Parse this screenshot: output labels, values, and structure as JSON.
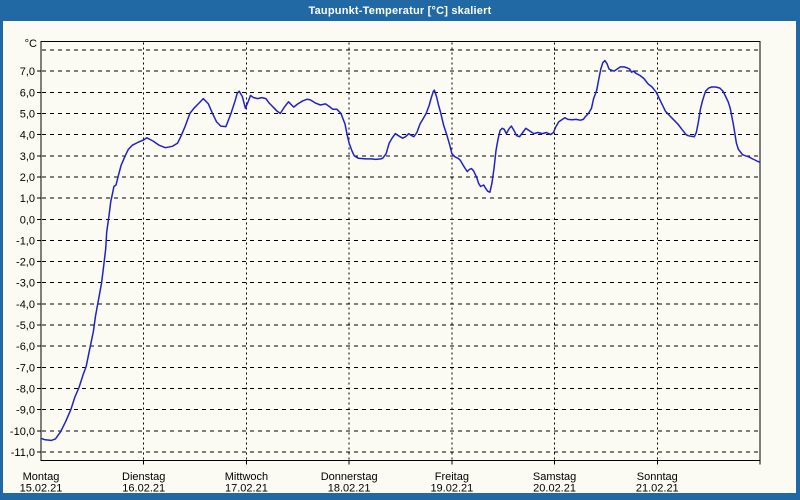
{
  "window": {
    "title": "Taupunkt-Temperatur [°C] skaliert",
    "frame_color": "#2069a4",
    "title_text_color": "#ffffff",
    "panel_color": "#fbfbf4"
  },
  "chart_data": {
    "type": "line",
    "title": "Taupunkt-Temperatur [°C] skaliert",
    "ylabel": "°C",
    "unit_label": "°C",
    "grid": "dashed",
    "legend": "none",
    "line_color": "#2121c8",
    "axis_color": "#000000",
    "ylim": [
      -11.4,
      8.4
    ],
    "xlim_days": [
      0,
      7
    ],
    "y_gridlines": [
      8,
      7,
      6,
      5,
      4,
      3,
      2,
      1,
      0,
      -1,
      -2,
      -3,
      -4,
      -5,
      -6,
      -7,
      -8,
      -9,
      -10,
      -11
    ],
    "y_tick_labels": [
      {
        "value": 7,
        "label": "7,0"
      },
      {
        "value": 6,
        "label": "6,0"
      },
      {
        "value": 5,
        "label": "5,0"
      },
      {
        "value": 4,
        "label": "4,0"
      },
      {
        "value": 3,
        "label": "3,0"
      },
      {
        "value": 2,
        "label": "2,0"
      },
      {
        "value": 1,
        "label": "1,0"
      },
      {
        "value": 0,
        "label": "0,0"
      },
      {
        "value": -1,
        "label": "-1,0"
      },
      {
        "value": -2,
        "label": "-2,0"
      },
      {
        "value": -3,
        "label": "-3,0"
      },
      {
        "value": -4,
        "label": "-4,0"
      },
      {
        "value": -5,
        "label": "-5,0"
      },
      {
        "value": -6,
        "label": "-6,0"
      },
      {
        "value": -7,
        "label": "-7,0"
      },
      {
        "value": -8,
        "label": "-8,0"
      },
      {
        "value": -9,
        "label": "-9,0"
      },
      {
        "value": -10,
        "label": "-10,0"
      },
      {
        "value": -11,
        "label": "-11,0"
      }
    ],
    "x_days": [
      {
        "day_index": 0,
        "name": "Montag",
        "date": "15.02.21"
      },
      {
        "day_index": 1,
        "name": "Dienstag",
        "date": "16.02.21"
      },
      {
        "day_index": 2,
        "name": "Mittwoch",
        "date": "17.02.21"
      },
      {
        "day_index": 3,
        "name": "Donnerstag",
        "date": "18.02.21"
      },
      {
        "day_index": 4,
        "name": "Freitag",
        "date": "19.02.21"
      },
      {
        "day_index": 5,
        "name": "Samstag",
        "date": "20.02.21"
      },
      {
        "day_index": 6,
        "name": "Sonntag",
        "date": "21.02.21"
      }
    ],
    "series": [
      {
        "name": "Taupunkt-Temperatur [°C]",
        "points": [
          [
            0,
            -10.35
          ],
          [
            0.04,
            -10.42
          ],
          [
            0.1,
            -10.45
          ],
          [
            0.14,
            -10.38
          ],
          [
            0.19,
            -10.05
          ],
          [
            0.24,
            -9.55
          ],
          [
            0.29,
            -9
          ],
          [
            0.33,
            -8.4
          ],
          [
            0.37,
            -7.95
          ],
          [
            0.41,
            -7.35
          ],
          [
            0.44,
            -6.95
          ],
          [
            0.48,
            -6
          ],
          [
            0.51,
            -5.3
          ],
          [
            0.53,
            -4.6
          ],
          [
            0.56,
            -3.8
          ],
          [
            0.59,
            -3
          ],
          [
            0.61,
            -2.2
          ],
          [
            0.63,
            -1.4
          ],
          [
            0.64,
            -0.6
          ],
          [
            0.66,
            0.1
          ],
          [
            0.68,
            0.85
          ],
          [
            0.7,
            1.3
          ],
          [
            0.71,
            1.55
          ],
          [
            0.73,
            1.62
          ],
          [
            0.75,
            2
          ],
          [
            0.78,
            2.55
          ],
          [
            0.82,
            3
          ],
          [
            0.85,
            3.3
          ],
          [
            0.89,
            3.5
          ],
          [
            0.95,
            3.65
          ],
          [
            1,
            3.75
          ],
          [
            1.03,
            3.85
          ],
          [
            1.09,
            3.7
          ],
          [
            1.15,
            3.5
          ],
          [
            1.21,
            3.38
          ],
          [
            1.28,
            3.45
          ],
          [
            1.33,
            3.6
          ],
          [
            1.36,
            3.9
          ],
          [
            1.4,
            4.35
          ],
          [
            1.45,
            5
          ],
          [
            1.49,
            5.25
          ],
          [
            1.54,
            5.5
          ],
          [
            1.58,
            5.7
          ],
          [
            1.63,
            5.45
          ],
          [
            1.67,
            5
          ],
          [
            1.71,
            4.6
          ],
          [
            1.75,
            4.4
          ],
          [
            1.8,
            4.38
          ],
          [
            1.85,
            5
          ],
          [
            1.89,
            5.6
          ],
          [
            1.91,
            5.95
          ],
          [
            1.93,
            6.05
          ],
          [
            1.96,
            5.8
          ],
          [
            1.99,
            5.25
          ],
          [
            2.02,
            5.6
          ],
          [
            2.04,
            5.85
          ],
          [
            2.07,
            5.75
          ],
          [
            2.11,
            5.7
          ],
          [
            2.15,
            5.75
          ],
          [
            2.19,
            5.7
          ],
          [
            2.22,
            5.5
          ],
          [
            2.24,
            5.4
          ],
          [
            2.27,
            5.25
          ],
          [
            2.3,
            5.1
          ],
          [
            2.33,
            5
          ],
          [
            2.37,
            5.3
          ],
          [
            2.41,
            5.55
          ],
          [
            2.44,
            5.4
          ],
          [
            2.46,
            5.3
          ],
          [
            2.5,
            5.45
          ],
          [
            2.55,
            5.6
          ],
          [
            2.59,
            5.67
          ],
          [
            2.62,
            5.65
          ],
          [
            2.67,
            5.5
          ],
          [
            2.72,
            5.4
          ],
          [
            2.77,
            5.45
          ],
          [
            2.8,
            5.35
          ],
          [
            2.84,
            5.2
          ],
          [
            2.88,
            5.2
          ],
          [
            2.92,
            5
          ],
          [
            2.96,
            4.5
          ],
          [
            2.98,
            4
          ],
          [
            3,
            3.6
          ],
          [
            3.03,
            3.2
          ],
          [
            3.05,
            3
          ],
          [
            3.09,
            2.88
          ],
          [
            3.16,
            2.85
          ],
          [
            3.21,
            2.85
          ],
          [
            3.26,
            2.83
          ],
          [
            3.31,
            2.85
          ],
          [
            3.33,
            2.9
          ],
          [
            3.36,
            3.1
          ],
          [
            3.39,
            3.6
          ],
          [
            3.42,
            3.85
          ],
          [
            3.45,
            4.05
          ],
          [
            3.48,
            3.95
          ],
          [
            3.52,
            3.83
          ],
          [
            3.55,
            3.9
          ],
          [
            3.58,
            4.05
          ],
          [
            3.61,
            3.95
          ],
          [
            3.63,
            3.9
          ],
          [
            3.66,
            4.1
          ],
          [
            3.69,
            4.5
          ],
          [
            3.72,
            4.75
          ],
          [
            3.75,
            5
          ],
          [
            3.78,
            5.4
          ],
          [
            3.8,
            5.75
          ],
          [
            3.82,
            6.05
          ],
          [
            3.83,
            6.1
          ],
          [
            3.85,
            5.8
          ],
          [
            3.87,
            5.4
          ],
          [
            3.89,
            5.05
          ],
          [
            3.92,
            4.45
          ],
          [
            3.95,
            4
          ],
          [
            3.98,
            3.5
          ],
          [
            4,
            3.1
          ],
          [
            4.03,
            2.95
          ],
          [
            4.06,
            2.88
          ],
          [
            4.08,
            2.8
          ],
          [
            4.11,
            2.55
          ],
          [
            4.13,
            2.4
          ],
          [
            4.15,
            2.25
          ],
          [
            4.17,
            2.35
          ],
          [
            4.19,
            2.4
          ],
          [
            4.21,
            2.3
          ],
          [
            4.24,
            2
          ],
          [
            4.26,
            1.7
          ],
          [
            4.28,
            1.55
          ],
          [
            4.31,
            1.62
          ],
          [
            4.33,
            1.45
          ],
          [
            4.35,
            1.32
          ],
          [
            4.37,
            1.28
          ],
          [
            4.39,
            1.7
          ],
          [
            4.41,
            2.4
          ],
          [
            4.43,
            3.25
          ],
          [
            4.45,
            3.8
          ],
          [
            4.47,
            4.2
          ],
          [
            4.49,
            4.3
          ],
          [
            4.51,
            4.25
          ],
          [
            4.53,
            4.05
          ],
          [
            4.56,
            4.3
          ],
          [
            4.58,
            4.4
          ],
          [
            4.61,
            4.15
          ],
          [
            4.63,
            3.95
          ],
          [
            4.66,
            3.9
          ],
          [
            4.69,
            4.1
          ],
          [
            4.72,
            4.3
          ],
          [
            4.75,
            4.2
          ],
          [
            4.78,
            4.1
          ],
          [
            4.8,
            4.05
          ],
          [
            4.84,
            4.1
          ],
          [
            4.88,
            4.05
          ],
          [
            4.92,
            4.1
          ],
          [
            4.96,
            4
          ],
          [
            4.99,
            4.1
          ],
          [
            5.01,
            4.35
          ],
          [
            5.04,
            4.6
          ],
          [
            5.07,
            4.7
          ],
          [
            5.1,
            4.8
          ],
          [
            5.13,
            4.72
          ],
          [
            5.17,
            4.7
          ],
          [
            5.21,
            4.72
          ],
          [
            5.25,
            4.68
          ],
          [
            5.28,
            4.72
          ],
          [
            5.3,
            4.85
          ],
          [
            5.33,
            5
          ],
          [
            5.36,
            5.25
          ],
          [
            5.38,
            5.7
          ],
          [
            5.41,
            6.1
          ],
          [
            5.43,
            6.6
          ],
          [
            5.45,
            7.1
          ],
          [
            5.47,
            7.4
          ],
          [
            5.49,
            7.5
          ],
          [
            5.51,
            7.35
          ],
          [
            5.53,
            7.1
          ],
          [
            5.55,
            7.05
          ],
          [
            5.58,
            7
          ],
          [
            5.61,
            7.1
          ],
          [
            5.64,
            7.2
          ],
          [
            5.68,
            7.2
          ],
          [
            5.71,
            7.15
          ],
          [
            5.73,
            7.1
          ],
          [
            5.75,
            6.95
          ],
          [
            5.77,
            7
          ],
          [
            5.79,
            6.9
          ],
          [
            5.83,
            6.8
          ],
          [
            5.87,
            6.65
          ],
          [
            5.91,
            6.4
          ],
          [
            5.95,
            6.25
          ],
          [
            5.99,
            6
          ],
          [
            6.01,
            5.8
          ],
          [
            6.04,
            5.5
          ],
          [
            6.08,
            5.1
          ],
          [
            6.12,
            4.9
          ],
          [
            6.16,
            4.7
          ],
          [
            6.2,
            4.5
          ],
          [
            6.24,
            4.25
          ],
          [
            6.28,
            4
          ],
          [
            6.3,
            3.95
          ],
          [
            6.33,
            3.92
          ],
          [
            6.36,
            3.9
          ],
          [
            6.38,
            4.1
          ],
          [
            6.4,
            4.6
          ],
          [
            6.42,
            5.2
          ],
          [
            6.44,
            5.6
          ],
          [
            6.46,
            5.9
          ],
          [
            6.47,
            6.05
          ],
          [
            6.5,
            6.2
          ],
          [
            6.53,
            6.25
          ],
          [
            6.57,
            6.25
          ],
          [
            6.61,
            6.2
          ],
          [
            6.64,
            6.05
          ],
          [
            6.66,
            5.85
          ],
          [
            6.69,
            5.55
          ],
          [
            6.71,
            5.25
          ],
          [
            6.74,
            4.5
          ],
          [
            6.77,
            3.6
          ],
          [
            6.79,
            3.3
          ],
          [
            6.81,
            3.18
          ],
          [
            6.83,
            3.05
          ],
          [
            6.86,
            3
          ],
          [
            6.89,
            2.95
          ],
          [
            6.92,
            2.87
          ],
          [
            6.95,
            2.8
          ],
          [
            6.98,
            2.73
          ],
          [
            7,
            2.7
          ]
        ]
      }
    ]
  }
}
